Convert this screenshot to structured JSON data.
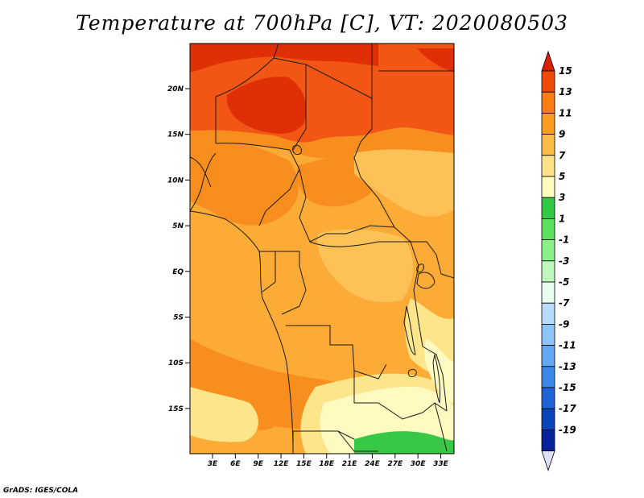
{
  "title": "Temperature at 700hPa [C], VT: 2020080503",
  "credit": "GrADS: IGES/COLA",
  "map": {
    "lat_labels": [
      "20N",
      "15N",
      "10N",
      "5N",
      "EQ",
      "5S",
      "10S",
      "15S"
    ],
    "lon_labels": [
      "3E",
      "6E",
      "9E",
      "12E",
      "15E",
      "18E",
      "21E",
      "24E",
      "27E",
      "30E",
      "33E"
    ]
  },
  "colorbar": {
    "levels": [
      "15",
      "13",
      "11",
      "9",
      "7",
      "5",
      "3",
      "1",
      "-1",
      "-3",
      "-5",
      "-7",
      "-9",
      "-11",
      "-13",
      "-15",
      "-17",
      "-19"
    ],
    "colors": [
      "#d92100",
      "#f04a08",
      "#f87c14",
      "#fa9c22",
      "#fcbc48",
      "#fde287",
      "#fffcbc",
      "#31c844",
      "#5ce060",
      "#8cf08a",
      "#c0f8bc",
      "#eafeee",
      "#b8dcfc",
      "#8cc4fa",
      "#64a8f4",
      "#3c88e8",
      "#1e64d8",
      "#0c44bc",
      "#08249a",
      "#e0e0f8"
    ]
  },
  "palette": {
    "darkred": "#e02e06",
    "red": "#f25614",
    "dorange": "#f88e1e",
    "orange": "#fbab36",
    "lorange": "#fcc258",
    "yellow": "#fde58c",
    "pale": "#fffabf",
    "green": "#38c846",
    "border": "#1a1a1a"
  }
}
